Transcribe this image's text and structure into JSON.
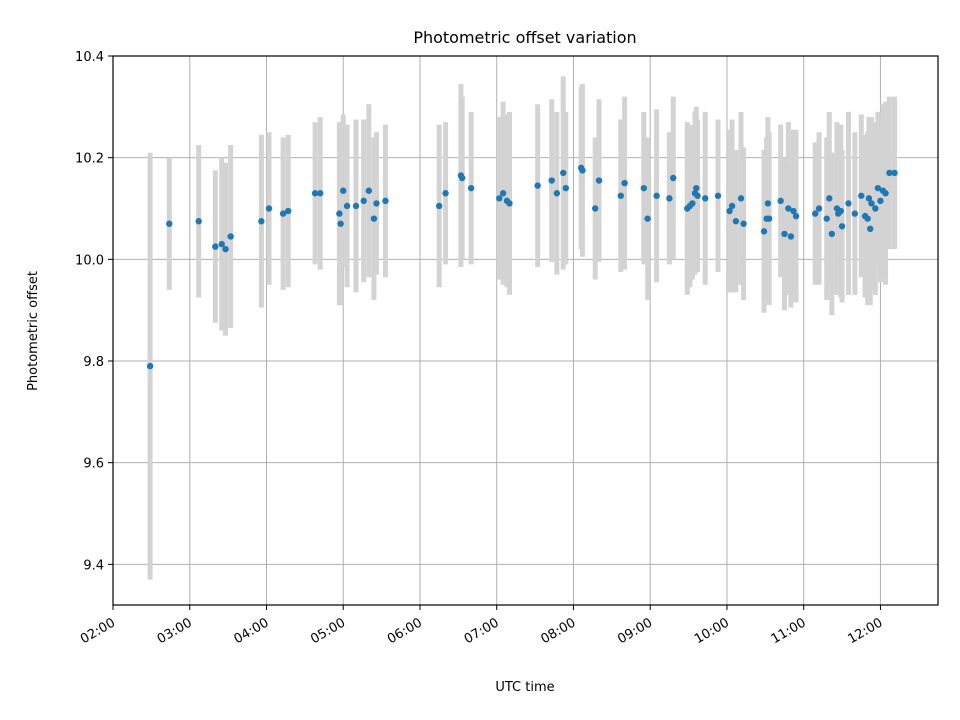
{
  "chart_data": {
    "type": "scatter",
    "title": "Photometric offset variation",
    "xlabel": "UTC time",
    "ylabel": "Photometric offset",
    "xlim": [
      "02:00",
      "12:45"
    ],
    "ylim": [
      9.32,
      10.4
    ],
    "x_ticks": [
      "02:00",
      "03:00",
      "04:00",
      "05:00",
      "06:00",
      "07:00",
      "08:00",
      "09:00",
      "10:00",
      "11:00",
      "12:00"
    ],
    "y_ticks": [
      9.4,
      9.6,
      9.8,
      10.0,
      10.2,
      10.4
    ],
    "y_tick_labels": [
      "9.4",
      "9.6",
      "9.8",
      "10.0",
      "10.2",
      "10.4"
    ],
    "grid": true,
    "colors": {
      "points": "#1f77b4",
      "errorbars": "#d3d3d3",
      "grid": "#b0b0b0"
    },
    "series": [
      {
        "x": [
          "02:29",
          "02:44",
          "03:07",
          "03:20",
          "03:25",
          "03:28",
          "03:32",
          "03:56",
          "04:02",
          "04:13",
          "04:17",
          "04:38",
          "04:42",
          "04:57",
          "04:58",
          "05:00",
          "05:03",
          "05:10",
          "05:16",
          "05:20",
          "05:24",
          "05:26",
          "05:33",
          "06:15",
          "06:20",
          "06:32",
          "06:33",
          "06:40",
          "07:02",
          "07:05",
          "07:08",
          "07:10",
          "07:32",
          "07:43",
          "07:47",
          "07:52",
          "07:54",
          "08:06",
          "08:07",
          "08:17",
          "08:20",
          "08:37",
          "08:40",
          "08:55",
          "08:58",
          "09:05",
          "09:15",
          "09:18",
          "09:29",
          "09:31",
          "09:33",
          "09:35",
          "09:36",
          "09:37",
          "09:43",
          "09:53",
          "10:02",
          "10:04",
          "10:07",
          "10:11",
          "10:13",
          "10:29",
          "10:31",
          "10:32",
          "10:33",
          "10:42",
          "10:45",
          "10:48",
          "10:50",
          "10:52",
          "10:54",
          "11:09",
          "11:12",
          "11:18",
          "11:20",
          "11:22",
          "11:26",
          "11:27",
          "11:29",
          "11:30",
          "11:35",
          "11:40",
          "11:45",
          "11:48",
          "11:50",
          "11:51",
          "11:52",
          "11:53",
          "11:56",
          "11:58",
          "12:00",
          "12:02",
          "12:04",
          "12:07",
          "12:11"
        ],
        "y": [
          9.79,
          10.07,
          10.075,
          10.025,
          10.03,
          10.02,
          10.045,
          10.075,
          10.1,
          10.09,
          10.095,
          10.13,
          10.13,
          10.09,
          10.07,
          10.135,
          10.105,
          10.105,
          10.115,
          10.135,
          10.08,
          10.11,
          10.115,
          10.105,
          10.13,
          10.165,
          10.16,
          10.14,
          10.12,
          10.13,
          10.115,
          10.11,
          10.145,
          10.155,
          10.13,
          10.17,
          10.14,
          10.18,
          10.175,
          10.1,
          10.155,
          10.125,
          10.15,
          10.14,
          10.08,
          10.125,
          10.12,
          10.16,
          10.1,
          10.105,
          10.11,
          10.13,
          10.14,
          10.125,
          10.12,
          10.125,
          10.095,
          10.105,
          10.075,
          10.12,
          10.07,
          10.055,
          10.08,
          10.11,
          10.08,
          10.115,
          10.05,
          10.1,
          10.045,
          10.095,
          10.085,
          10.09,
          10.1,
          10.08,
          10.12,
          10.05,
          10.1,
          10.09,
          10.095,
          10.065,
          10.11,
          10.09,
          10.125,
          10.085,
          10.08,
          10.12,
          10.06,
          10.11,
          10.1,
          10.14,
          10.115,
          10.135,
          10.13,
          10.17,
          10.17
        ],
        "yerr": [
          0.42,
          0.13,
          0.15,
          0.15,
          0.17,
          0.17,
          0.18,
          0.17,
          0.15,
          0.15,
          0.15,
          0.14,
          0.15,
          0.18,
          0.16,
          0.15,
          0.16,
          0.17,
          0.16,
          0.17,
          0.16,
          0.14,
          0.15,
          0.16,
          0.14,
          0.18,
          0.16,
          0.15,
          0.16,
          0.18,
          0.17,
          0.18,
          0.16,
          0.16,
          0.16,
          0.19,
          0.15,
          0.16,
          0.17,
          0.14,
          0.16,
          0.15,
          0.17,
          0.15,
          0.16,
          0.17,
          0.13,
          0.16,
          0.17,
          0.16,
          0.15,
          0.16,
          0.16,
          0.15,
          0.17,
          0.15,
          0.16,
          0.17,
          0.14,
          0.17,
          0.15,
          0.16,
          0.16,
          0.17,
          0.17,
          0.15,
          0.15,
          0.17,
          0.14,
          0.16,
          0.17,
          0.14,
          0.15,
          0.16,
          0.17,
          0.16,
          0.17,
          0.16,
          0.17,
          0.15,
          0.18,
          0.16,
          0.16,
          0.16,
          0.17,
          0.16,
          0.15,
          0.17,
          0.17,
          0.15,
          0.16,
          0.17,
          0.18,
          0.15,
          0.15
        ]
      }
    ]
  }
}
